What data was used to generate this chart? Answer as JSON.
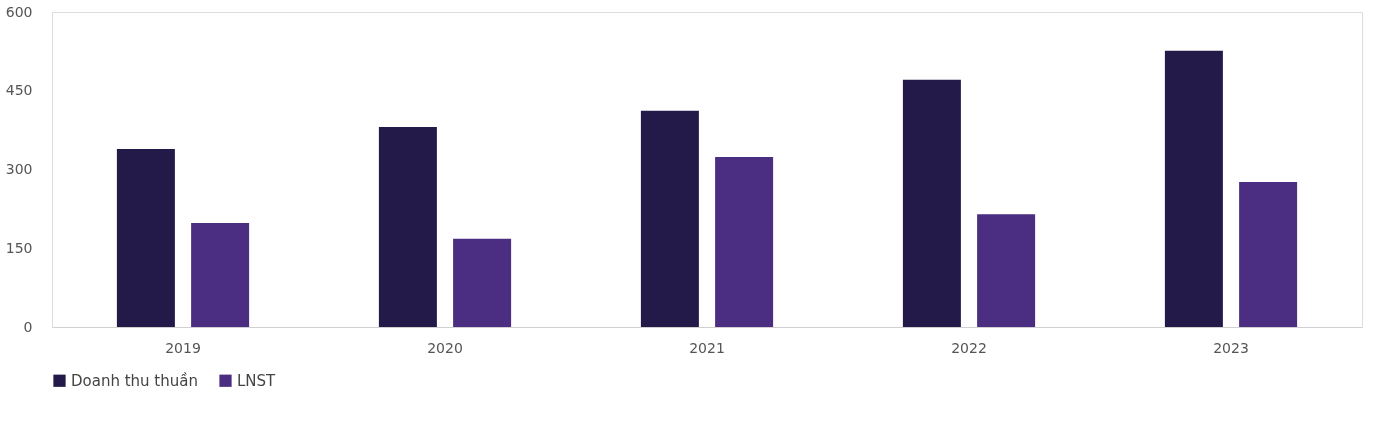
{
  "chart_data": {
    "type": "bar",
    "categories": [
      "2019",
      "2020",
      "2021",
      "2022",
      "2023"
    ],
    "series": [
      {
        "name": "Doanh thu thuần",
        "color": "#241a4a",
        "values": [
          339,
          381,
          412,
          471,
          526
        ]
      },
      {
        "name": "LNST",
        "color": "#4b2d82",
        "values": [
          198,
          168,
          324,
          215,
          276
        ]
      }
    ],
    "ylim": [
      0,
      600
    ],
    "yticks": [
      0,
      150,
      300,
      450,
      600
    ],
    "grid": false,
    "legend": "bottom"
  }
}
